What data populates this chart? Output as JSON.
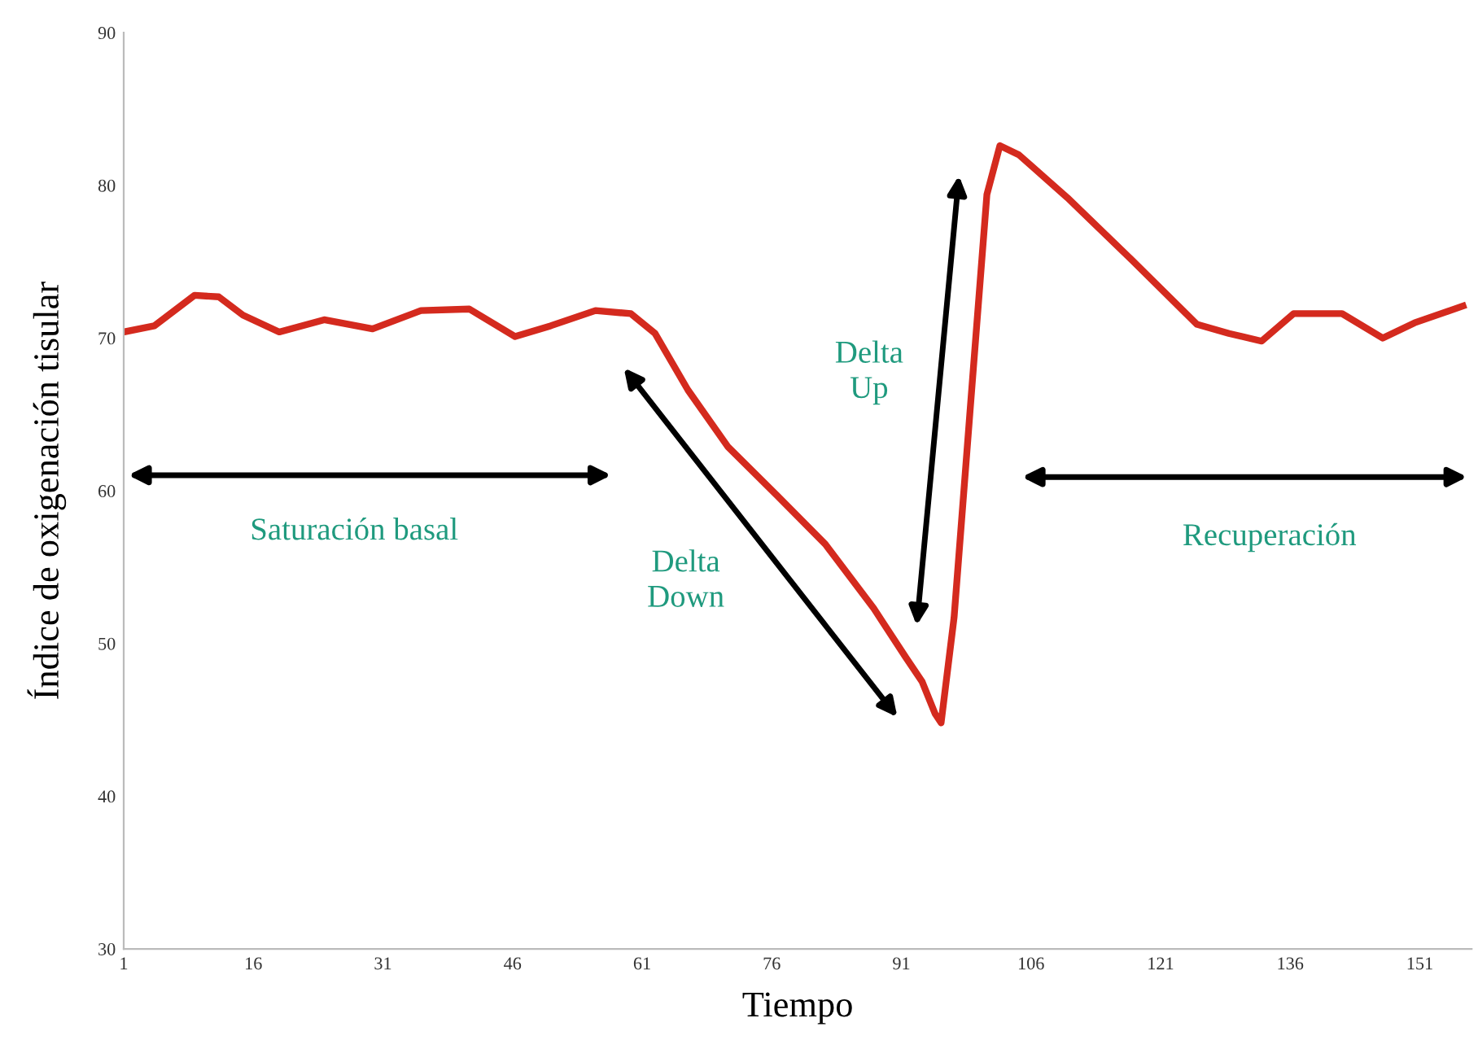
{
  "chart_data": {
    "type": "line",
    "xlabel": "Tiempo",
    "ylabel": "Índice de oxigenación tisular",
    "x": [
      1,
      4.55,
      9.2,
      12.0,
      14.8,
      19.0,
      24.2,
      29.8,
      35.4,
      41.0,
      46.3,
      50.4,
      55.6,
      59.7,
      62.5,
      66.3,
      70.9,
      76.6,
      82.2,
      87.8,
      91.5,
      93.4,
      94.9,
      95.6,
      97.1,
      99.0,
      100.9,
      102.4,
      104.6,
      110.2,
      117.7,
      125.2,
      128.9,
      132.7,
      136.4,
      142.0,
      146.7,
      150.4,
      156.0
    ],
    "series": [
      {
        "color": "#d42a1e",
        "values": [
          70.4,
          70.8,
          72.8,
          72.7,
          71.5,
          70.4,
          71.2,
          70.6,
          71.8,
          71.9,
          70.1,
          70.8,
          71.8,
          71.6,
          70.3,
          66.6,
          62.9,
          59.7,
          56.5,
          52.3,
          49.1,
          47.5,
          45.4,
          44.8,
          51.7,
          65.6,
          79.4,
          82.6,
          82.0,
          79.2,
          75.1,
          70.9,
          70.3,
          69.8,
          71.6,
          71.6,
          70.0,
          71.0,
          72.1
        ]
      }
    ],
    "xlim": [
      1,
      157
    ],
    "ylim": [
      30,
      90
    ],
    "xticks": [
      1,
      16,
      31,
      46,
      61,
      76,
      91,
      106,
      121,
      136,
      151
    ],
    "yticks": [
      30,
      40,
      50,
      60,
      70,
      80,
      90
    ],
    "grid": false,
    "marker": "none",
    "line_style": "solid",
    "annotations": [
      "Saturación basal",
      "Delta\nDown",
      "Delta\nUp",
      "Recuperación"
    ]
  }
}
